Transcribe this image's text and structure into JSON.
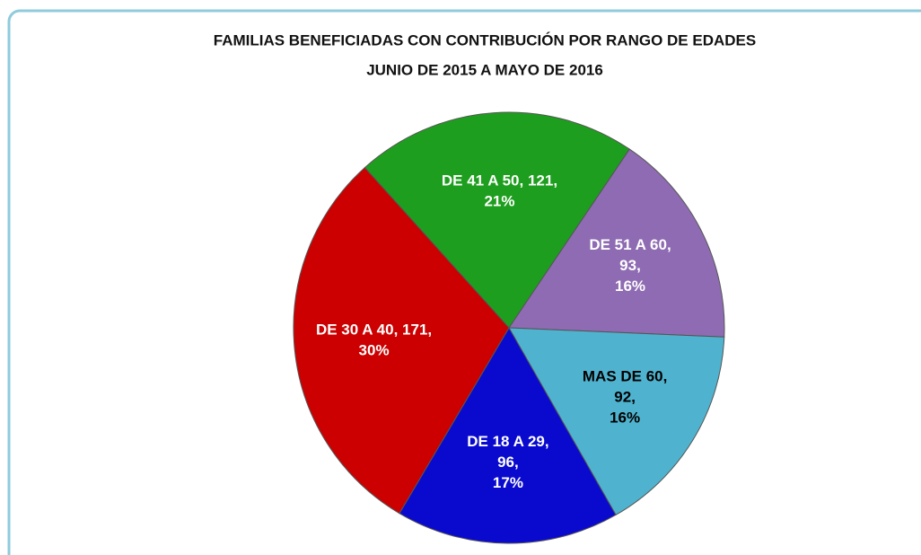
{
  "chart_data": {
    "type": "pie",
    "title": "FAMILIAS BENEFICIADAS CON CONTRIBUCIÓN POR RANGO DE EDADES",
    "subtitle": "JUNIO DE 2015 A MAYO DE 2016",
    "values": [
      121,
      93,
      92,
      96,
      171
    ],
    "value_labels": [
      [
        "DE 41 A 50, 121,",
        "21%"
      ],
      [
        "DE 51 A 60,",
        "93,",
        "16%"
      ],
      [
        "MAS DE 60,",
        "92,",
        "16%"
      ],
      [
        "DE 18 A 29,",
        "96,",
        "17%"
      ],
      [
        "DE 30 A 40, 171,",
        "30%"
      ]
    ],
    "colors": [
      "#1e9e1e",
      "#8e6bb2",
      "#4fb3cf",
      "#0a0acf",
      "#cc0000"
    ],
    "label_colors": [
      "#ffffff",
      "#ffffff",
      "#000000",
      "#ffffff",
      "#ffffff"
    ]
  }
}
